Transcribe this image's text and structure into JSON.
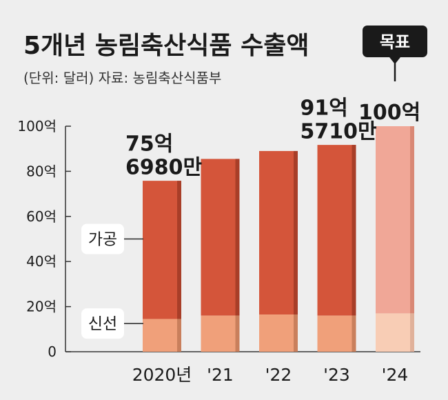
{
  "chart_data": {
    "type": "bar",
    "stacked": true,
    "title": "5개년 농림축산식품 수출액",
    "subtitle": "(단위: 달러)  자료: 농림축산식품부",
    "categories": [
      "2020년",
      "'21",
      "'22",
      "'23",
      "'24"
    ],
    "series": [
      {
        "name": "신선",
        "values": [
          14.5,
          16,
          16.5,
          16,
          17
        ]
      },
      {
        "name": "가공",
        "values": [
          61.3,
          69.5,
          72.5,
          75.7,
          83
        ]
      }
    ],
    "totals": [
      75.698,
      85.5,
      89,
      91.571,
      100
    ],
    "data_labels": [
      {
        "index": 0,
        "lines": [
          "75억",
          "6980만"
        ]
      },
      {
        "index": 3,
        "lines": [
          "91억",
          "5710만"
        ]
      },
      {
        "index": 4,
        "lines": [
          "100억"
        ]
      }
    ],
    "target_label": "목표",
    "target_index": 4,
    "y_ticks": [
      0,
      20,
      40,
      60,
      80,
      100
    ],
    "y_tick_labels": [
      "0",
      "20억",
      "40억",
      "60억",
      "80억",
      "100억"
    ],
    "ylim": [
      0,
      100
    ],
    "colors": {
      "processed": "#d4553a",
      "processed_side": "#a83e28",
      "fresh": "#f0a07a",
      "fresh_side": "#c97f5c",
      "target_processed": "#f0a797",
      "target_processed_side": "#d98875",
      "target_fresh": "#f8cdb5",
      "target_fresh_side": "#e0b19a",
      "axis": "#333333",
      "target_box": "#1a1a1a"
    },
    "grid": false
  }
}
